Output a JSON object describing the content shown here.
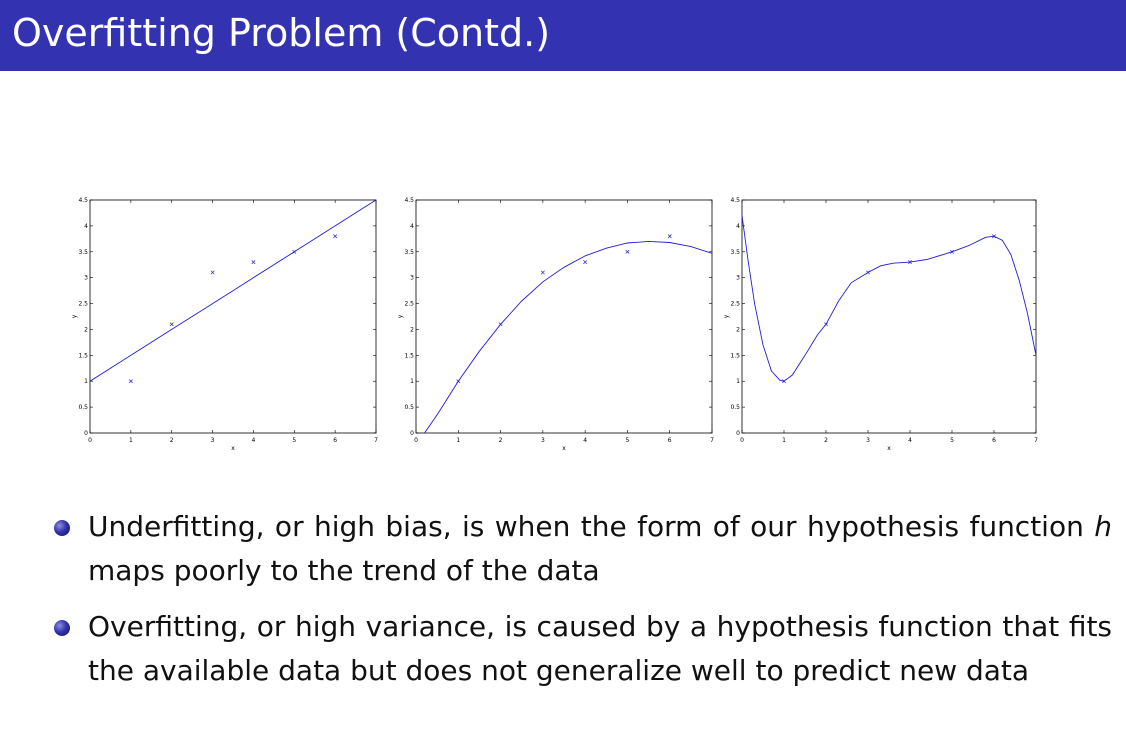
{
  "slide": {
    "title": "Overfitting Problem (Contd.)",
    "accent_color": "#3333b2"
  },
  "bullets": [
    {
      "lines": [
        [
          {
            "t": "Underfitting, or high bias, is when the form of our hypothesis function"
          }
        ],
        [
          {
            "t": "h",
            "italic": true
          },
          {
            "t": " maps poorly to the trend of the data"
          }
        ]
      ]
    },
    {
      "lines": [
        [
          {
            "t": "Overfitting, or high variance, is caused by a hypothesis function that"
          }
        ],
        [
          {
            "t": "fits the available data but does not generalize well to predict new data"
          }
        ]
      ]
    }
  ],
  "chart_data": [
    {
      "type": "scatter",
      "title": "",
      "xlabel": "x",
      "ylabel": "y",
      "xlim": [
        0,
        7
      ],
      "ylim": [
        0,
        4.5
      ],
      "xticks": [
        "0",
        "1",
        "2",
        "3",
        "4",
        "5",
        "6",
        "7"
      ],
      "yticks": [
        "0",
        "0.5",
        "1",
        "1.5",
        "2",
        "2.5",
        "3",
        "3.5",
        "4",
        "4.5"
      ],
      "grid": false,
      "marker": "x",
      "line_color": "#1f1fd6",
      "points": {
        "x": [
          1,
          2,
          3,
          4,
          5,
          6
        ],
        "y": [
          1.0,
          2.1,
          3.1,
          3.3,
          3.5,
          3.8
        ]
      },
      "fit": {
        "x": [
          0,
          1,
          2,
          3,
          4,
          5,
          6,
          7
        ],
        "y": [
          1.0,
          1.5,
          2.0,
          2.5,
          3.0,
          3.5,
          4.0,
          4.5
        ]
      }
    },
    {
      "type": "scatter",
      "title": "",
      "xlabel": "x",
      "ylabel": "y",
      "xlim": [
        0,
        7
      ],
      "ylim": [
        0,
        4.5
      ],
      "xticks": [
        "0",
        "1",
        "2",
        "3",
        "4",
        "5",
        "6",
        "7"
      ],
      "yticks": [
        "0",
        "0.5",
        "1",
        "1.5",
        "2",
        "2.5",
        "3",
        "3.5",
        "4",
        "4.5"
      ],
      "grid": false,
      "marker": "x",
      "line_color": "#1f1fd6",
      "points": {
        "x": [
          1,
          2,
          3,
          4,
          5,
          6
        ],
        "y": [
          1.0,
          2.1,
          3.1,
          3.3,
          3.5,
          3.8
        ]
      },
      "fit": {
        "x": [
          0.2,
          0.5,
          1,
          1.5,
          2,
          2.5,
          3,
          3.5,
          4,
          4.5,
          5,
          5.5,
          6,
          6.5,
          7
        ],
        "y": [
          0.0,
          0.35,
          1.0,
          1.58,
          2.1,
          2.55,
          2.92,
          3.2,
          3.42,
          3.57,
          3.67,
          3.7,
          3.68,
          3.6,
          3.47
        ]
      }
    },
    {
      "type": "scatter",
      "title": "",
      "xlabel": "x",
      "ylabel": "y",
      "xlim": [
        0,
        7
      ],
      "ylim": [
        0,
        4.5
      ],
      "xticks": [
        "0",
        "1",
        "2",
        "3",
        "4",
        "5",
        "6",
        "7"
      ],
      "yticks": [
        "0",
        "0.5",
        "1",
        "1.5",
        "2",
        "2.5",
        "3",
        "3.5",
        "4",
        "4.5"
      ],
      "grid": false,
      "marker": "x",
      "line_color": "#1f1fd6",
      "points": {
        "x": [
          1,
          2,
          3,
          4,
          5,
          6
        ],
        "y": [
          1.0,
          2.1,
          3.1,
          3.3,
          3.5,
          3.8
        ]
      },
      "fit": {
        "x": [
          0,
          0.15,
          0.3,
          0.5,
          0.7,
          0.9,
          1,
          1.2,
          1.5,
          1.8,
          2,
          2.3,
          2.6,
          3,
          3.3,
          3.6,
          4,
          4.4,
          4.8,
          5,
          5.4,
          5.8,
          6,
          6.2,
          6.4,
          6.6,
          6.8,
          7
        ],
        "y": [
          4.2,
          3.3,
          2.5,
          1.7,
          1.2,
          1.02,
          1.0,
          1.12,
          1.5,
          1.9,
          2.1,
          2.55,
          2.9,
          3.1,
          3.23,
          3.28,
          3.3,
          3.35,
          3.45,
          3.5,
          3.62,
          3.78,
          3.8,
          3.72,
          3.45,
          2.95,
          2.3,
          1.5
        ]
      }
    }
  ]
}
